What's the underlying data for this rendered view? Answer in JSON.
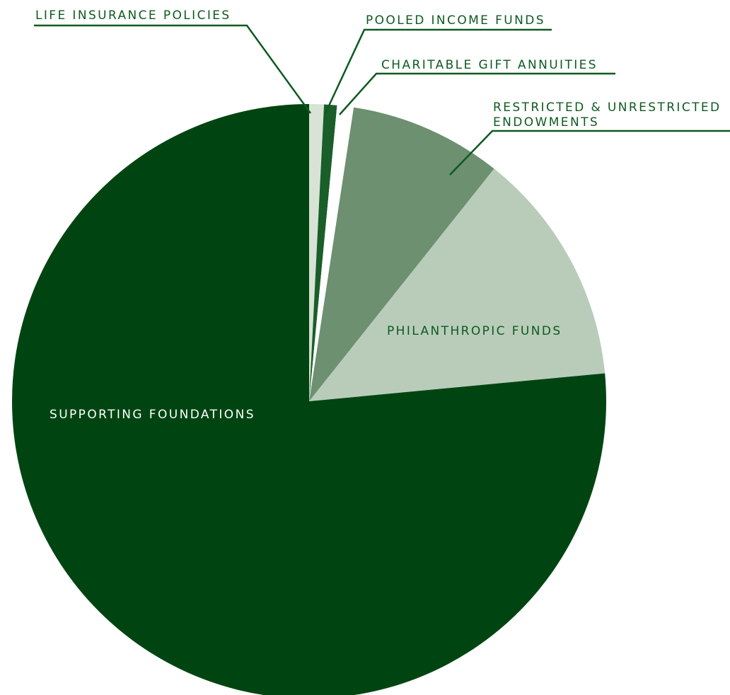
{
  "chart_data": {
    "type": "pie",
    "title": "",
    "legend": "none",
    "slices": [
      {
        "label": "LIFE INSURANCE POLICIES",
        "value": 0.8,
        "color": "#d8e3d5"
      },
      {
        "label": "POOLED INCOME FUNDS",
        "value": 0.7,
        "color": "#1a5e2a"
      },
      {
        "label": "CHARITABLE GIFT ANNUITIES",
        "value": 0.9,
        "color": "#ffffff"
      },
      {
        "label": [
          "RESTRICTED & UNRESTRICTED",
          "ENDOWMENTS"
        ],
        "value": 8.3,
        "color": "#6d9070"
      },
      {
        "label": "PHILANTHROPIC FUNDS",
        "value": 12.8,
        "color": "#b9ccba"
      },
      {
        "label": "SUPPORTING FOUNDATIONS",
        "value": 76.5,
        "color": "#004511"
      }
    ],
    "label_color": "#0e5a20",
    "inside_label_color": "#ffffff"
  }
}
